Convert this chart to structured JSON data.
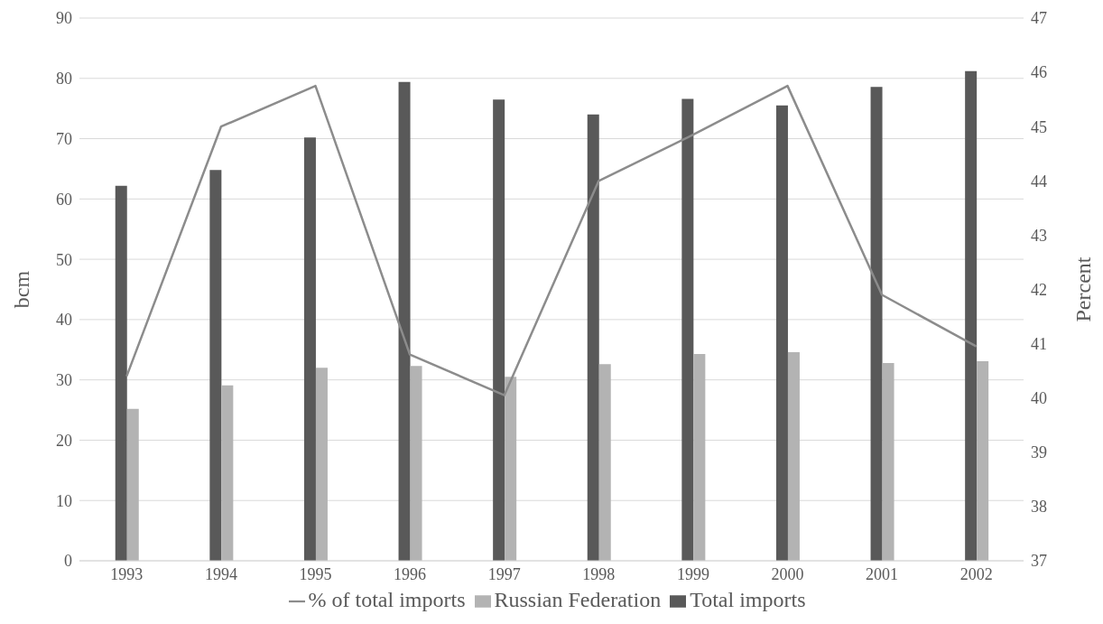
{
  "chart_data": {
    "type": "bar",
    "ylabel": "bcm",
    "y2label": "Percent",
    "categories": [
      "1993",
      "1994",
      "1995",
      "1996",
      "1997",
      "1998",
      "1999",
      "2000",
      "2001",
      "2002"
    ],
    "series": [
      {
        "name": "Total imports",
        "color": "#595959",
        "values": [
          62.2,
          64.8,
          70.2,
          79.4,
          76.5,
          74.0,
          76.6,
          75.5,
          78.6,
          81.2
        ]
      },
      {
        "name": "Russian Federation",
        "color": "#b3b3b3",
        "values": [
          25.2,
          29.1,
          32.0,
          32.3,
          30.5,
          32.6,
          34.3,
          34.6,
          32.8,
          33.1
        ]
      },
      {
        "name": "% of total imports",
        "type": "line",
        "axis": "y2",
        "color": "#8c8c8c",
        "values": [
          40.4,
          45.0,
          45.75,
          40.8,
          40.05,
          44.0,
          44.85,
          45.75,
          41.9,
          40.95
        ]
      }
    ],
    "ylim": [
      0,
      90
    ],
    "yticks": [
      0,
      10,
      20,
      30,
      40,
      50,
      60,
      70,
      80,
      90
    ],
    "y2lim": [
      37,
      47
    ],
    "y2ticks": [
      37,
      38,
      39,
      40,
      41,
      42,
      43,
      44,
      45,
      46,
      47
    ],
    "grid": "y",
    "legend": "bottom",
    "marker": "none",
    "line_style": "solid"
  }
}
